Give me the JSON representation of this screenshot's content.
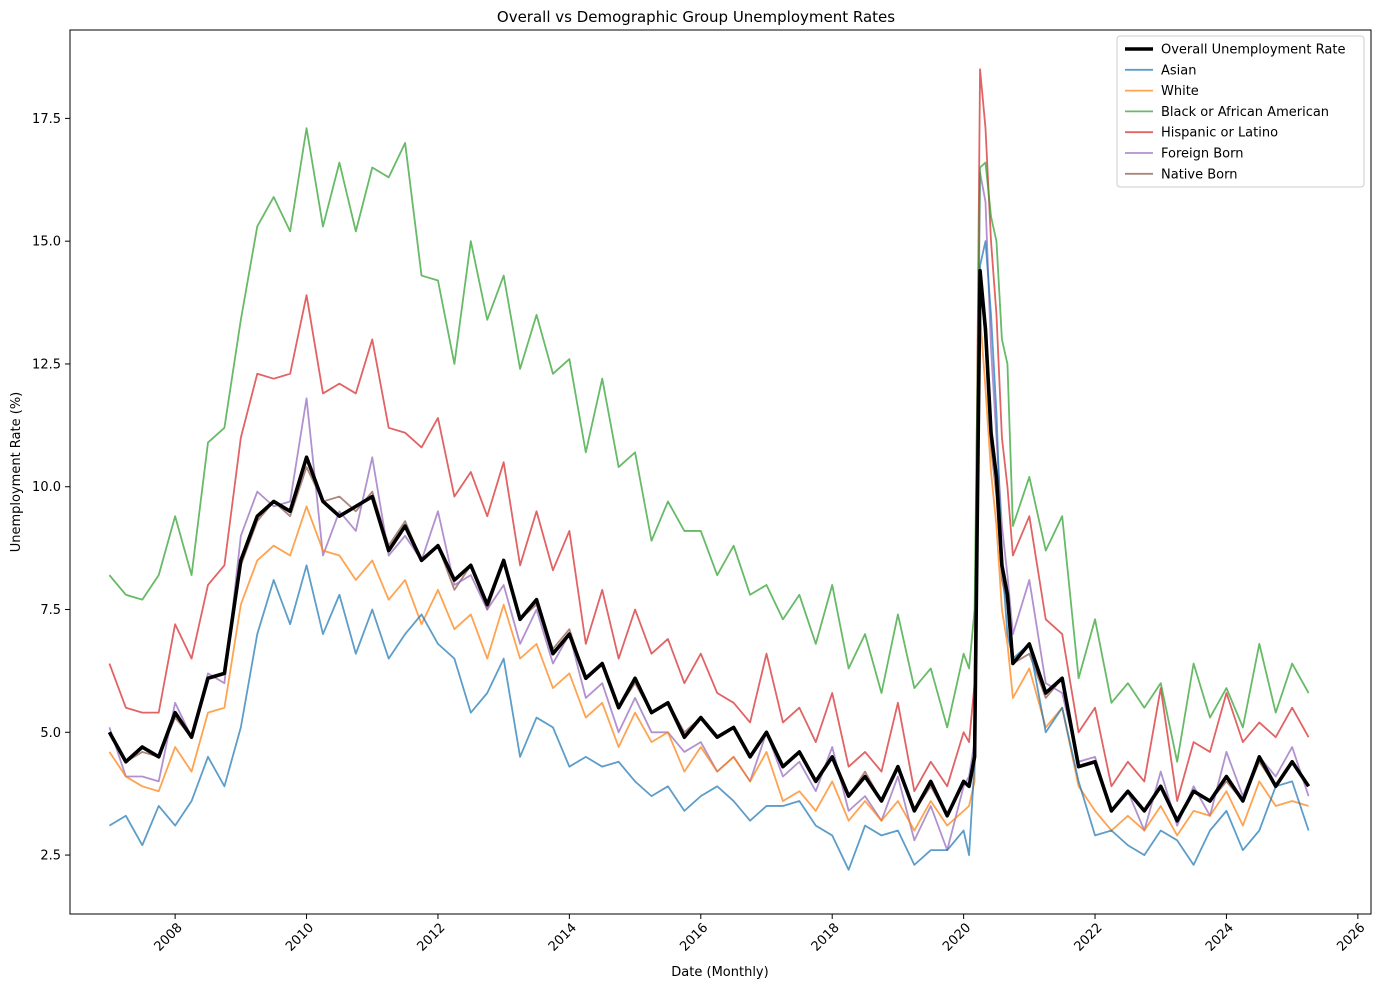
{
  "chart_data": {
    "type": "line",
    "title": "Overall vs Demographic Group Unemployment Rates",
    "xlabel": "Date (Monthly)",
    "ylabel": "Unemployment Rate (%)",
    "xlim": [
      2006.4,
      2026.2
    ],
    "ylim": [
      1.3,
      19.3
    ],
    "xticks": [
      2008,
      2010,
      2012,
      2014,
      2016,
      2018,
      2020,
      2022,
      2024,
      2026
    ],
    "yticks": [
      2.5,
      5.0,
      7.5,
      10.0,
      12.5,
      15.0,
      17.5
    ],
    "ytick_labels": [
      "2.5",
      "5.0",
      "7.5",
      "10.0",
      "12.5",
      "15.0",
      "17.5"
    ],
    "grid": false,
    "legend_position": "top-right",
    "x": [
      2007.0,
      2007.25,
      2007.5,
      2007.75,
      2008.0,
      2008.25,
      2008.5,
      2008.75,
      2009.0,
      2009.25,
      2009.5,
      2009.75,
      2010.0,
      2010.25,
      2010.5,
      2010.75,
      2011.0,
      2011.25,
      2011.5,
      2011.75,
      2012.0,
      2012.25,
      2012.5,
      2012.75,
      2013.0,
      2013.25,
      2013.5,
      2013.75,
      2014.0,
      2014.25,
      2014.5,
      2014.75,
      2015.0,
      2015.25,
      2015.5,
      2015.75,
      2016.0,
      2016.25,
      2016.5,
      2016.75,
      2017.0,
      2017.25,
      2017.5,
      2017.75,
      2018.0,
      2018.25,
      2018.5,
      2018.75,
      2019.0,
      2019.25,
      2019.5,
      2019.75,
      2020.0,
      2020.083,
      2020.167,
      2020.25,
      2020.333,
      2020.417,
      2020.5,
      2020.583,
      2020.667,
      2020.75,
      2021.0,
      2021.25,
      2021.5,
      2021.75,
      2022.0,
      2022.25,
      2022.5,
      2022.75,
      2023.0,
      2023.25,
      2023.5,
      2023.75,
      2024.0,
      2024.25,
      2024.5,
      2024.75,
      2025.0,
      2025.25
    ],
    "series": [
      {
        "name": "Overall Unemployment Rate",
        "color": "#000000",
        "width": 3.6,
        "values": [
          5.0,
          4.4,
          4.7,
          4.5,
          5.4,
          4.9,
          6.1,
          6.2,
          8.5,
          9.4,
          9.7,
          9.5,
          10.6,
          9.7,
          9.4,
          9.6,
          9.8,
          8.7,
          9.2,
          8.5,
          8.8,
          8.1,
          8.4,
          7.6,
          8.5,
          7.3,
          7.7,
          6.6,
          7.0,
          6.1,
          6.4,
          5.5,
          6.1,
          5.4,
          5.6,
          4.9,
          5.3,
          4.9,
          5.1,
          4.5,
          5.0,
          4.3,
          4.6,
          4.0,
          4.5,
          3.7,
          4.1,
          3.6,
          4.3,
          3.4,
          4.0,
          3.3,
          4.0,
          3.9,
          4.5,
          14.4,
          13.2,
          11.1,
          10.2,
          8.4,
          7.8,
          6.4,
          6.8,
          5.8,
          6.1,
          4.3,
          4.4,
          3.4,
          3.8,
          3.4,
          3.9,
          3.2,
          3.8,
          3.6,
          4.1,
          3.6,
          4.5,
          3.9,
          4.4,
          3.9
        ]
      },
      {
        "name": "Asian",
        "color": "#1f77b4",
        "width": 1.8,
        "values": [
          3.1,
          3.3,
          2.7,
          3.5,
          3.1,
          3.6,
          4.5,
          3.9,
          5.1,
          7.0,
          8.1,
          7.2,
          8.4,
          7.0,
          7.8,
          6.6,
          7.5,
          6.5,
          7.0,
          7.4,
          6.8,
          6.5,
          5.4,
          5.8,
          6.5,
          4.5,
          5.3,
          5.1,
          4.3,
          4.5,
          4.3,
          4.4,
          4.0,
          3.7,
          3.9,
          3.4,
          3.7,
          3.9,
          3.6,
          3.2,
          3.5,
          3.5,
          3.6,
          3.1,
          2.9,
          2.2,
          3.1,
          2.9,
          3.0,
          2.3,
          2.6,
          2.6,
          3.0,
          2.5,
          4.4,
          14.5,
          15.0,
          13.5,
          11.5,
          8.5,
          7.0,
          6.5,
          6.8,
          5.0,
          5.5,
          4.0,
          2.9,
          3.0,
          2.7,
          2.5,
          3.0,
          2.8,
          2.3,
          3.0,
          3.4,
          2.6,
          3.0,
          3.9,
          4.0,
          3.0
        ]
      },
      {
        "name": "White",
        "color": "#ff7f0e",
        "width": 1.8,
        "values": [
          4.6,
          4.1,
          3.9,
          3.8,
          4.7,
          4.2,
          5.4,
          5.5,
          7.6,
          8.5,
          8.8,
          8.6,
          9.6,
          8.7,
          8.6,
          8.1,
          8.5,
          7.7,
          8.1,
          7.2,
          7.9,
          7.1,
          7.4,
          6.5,
          7.6,
          6.5,
          6.8,
          5.9,
          6.2,
          5.3,
          5.6,
          4.7,
          5.4,
          4.8,
          5.0,
          4.2,
          4.7,
          4.2,
          4.5,
          4.0,
          4.6,
          3.6,
          3.8,
          3.4,
          4.0,
          3.2,
          3.6,
          3.2,
          3.6,
          3.0,
          3.6,
          3.1,
          3.4,
          3.5,
          4.0,
          13.5,
          12.0,
          10.3,
          9.2,
          7.5,
          6.8,
          5.7,
          6.3,
          5.1,
          5.5,
          3.9,
          3.4,
          3.0,
          3.3,
          3.0,
          3.5,
          2.9,
          3.4,
          3.3,
          3.8,
          3.1,
          4.0,
          3.5,
          3.6,
          3.5
        ]
      },
      {
        "name": "Black or African American",
        "color": "#2ca02c",
        "width": 1.8,
        "values": [
          8.2,
          7.8,
          7.7,
          8.2,
          9.4,
          8.2,
          10.9,
          11.2,
          13.4,
          15.3,
          15.9,
          15.2,
          17.3,
          15.3,
          16.6,
          15.2,
          16.5,
          16.3,
          17.0,
          14.3,
          14.2,
          12.5,
          15.0,
          13.4,
          14.3,
          12.4,
          13.5,
          12.3,
          12.6,
          10.7,
          12.2,
          10.4,
          10.7,
          8.9,
          9.7,
          9.1,
          9.1,
          8.2,
          8.8,
          7.8,
          8.0,
          7.3,
          7.8,
          6.8,
          8.0,
          6.3,
          7.0,
          5.8,
          7.4,
          5.9,
          6.3,
          5.1,
          6.6,
          6.3,
          7.5,
          16.5,
          16.6,
          15.5,
          15.0,
          13.0,
          12.5,
          9.2,
          10.2,
          8.7,
          9.4,
          6.1,
          7.3,
          5.6,
          6.0,
          5.5,
          6.0,
          4.4,
          6.4,
          5.3,
          5.9,
          5.1,
          6.8,
          5.4,
          6.4,
          5.8
        ]
      },
      {
        "name": "Hispanic or Latino",
        "color": "#d62728",
        "width": 1.8,
        "values": [
          6.4,
          5.5,
          5.4,
          5.4,
          7.2,
          6.5,
          8.0,
          8.4,
          11.0,
          12.3,
          12.2,
          12.3,
          13.9,
          11.9,
          12.1,
          11.9,
          13.0,
          11.2,
          11.1,
          10.8,
          11.4,
          9.8,
          10.3,
          9.4,
          10.5,
          8.4,
          9.5,
          8.3,
          9.1,
          6.8,
          7.9,
          6.5,
          7.5,
          6.6,
          6.9,
          6.0,
          6.6,
          5.8,
          5.6,
          5.2,
          6.6,
          5.2,
          5.5,
          4.8,
          5.8,
          4.3,
          4.6,
          4.2,
          5.6,
          3.8,
          4.4,
          3.9,
          5.0,
          4.8,
          6.0,
          18.5,
          17.3,
          15.0,
          13.5,
          11.0,
          10.0,
          8.6,
          9.4,
          7.3,
          7.0,
          5.0,
          5.5,
          3.9,
          4.4,
          4.0,
          5.9,
          3.6,
          4.8,
          4.6,
          5.8,
          4.8,
          5.2,
          4.9,
          5.5,
          4.9
        ]
      },
      {
        "name": "Foreign Born",
        "color": "#9467bd",
        "width": 1.8,
        "values": [
          5.1,
          4.1,
          4.1,
          4.0,
          5.6,
          4.9,
          6.2,
          6.0,
          9.0,
          9.9,
          9.6,
          9.7,
          11.8,
          8.6,
          9.5,
          9.1,
          10.6,
          8.6,
          9.0,
          8.5,
          9.5,
          8.0,
          8.2,
          7.5,
          8.0,
          6.8,
          7.5,
          6.4,
          7.0,
          5.7,
          6.0,
          5.0,
          5.7,
          5.0,
          5.0,
          4.6,
          4.8,
          4.2,
          4.5,
          4.0,
          5.0,
          4.1,
          4.4,
          3.8,
          4.7,
          3.4,
          3.7,
          3.2,
          4.1,
          2.8,
          3.5,
          2.6,
          3.9,
          4.1,
          4.8,
          16.4,
          15.8,
          12.8,
          11.0,
          9.2,
          8.2,
          7.0,
          8.1,
          6.0,
          5.8,
          4.4,
          4.5,
          3.4,
          3.8,
          3.0,
          4.2,
          3.1,
          3.9,
          3.3,
          4.6,
          3.7,
          4.5,
          4.1,
          4.7,
          3.7
        ]
      },
      {
        "name": "Native Born",
        "color": "#8c564b",
        "width": 1.8,
        "values": [
          5.0,
          4.4,
          4.6,
          4.5,
          5.3,
          4.9,
          6.1,
          6.2,
          8.4,
          9.3,
          9.7,
          9.4,
          10.4,
          9.7,
          9.8,
          9.5,
          9.9,
          8.8,
          9.3,
          8.5,
          8.8,
          7.9,
          8.4,
          7.5,
          8.5,
          7.3,
          7.6,
          6.7,
          7.1,
          6.1,
          6.4,
          5.5,
          6.0,
          5.4,
          5.6,
          5.0,
          5.3,
          4.9,
          5.1,
          4.5,
          5.0,
          4.3,
          4.6,
          4.0,
          4.5,
          3.7,
          4.2,
          3.6,
          4.3,
          3.4,
          3.9,
          3.3,
          4.0,
          3.9,
          4.5,
          14.3,
          13.0,
          10.8,
          9.8,
          8.1,
          7.6,
          6.4,
          6.6,
          5.7,
          6.1,
          4.3,
          4.4,
          3.4,
          3.8,
          3.4,
          3.9,
          3.2,
          3.8,
          3.6,
          4.0,
          3.6,
          4.4,
          3.9,
          4.4,
          3.9
        ]
      }
    ]
  }
}
